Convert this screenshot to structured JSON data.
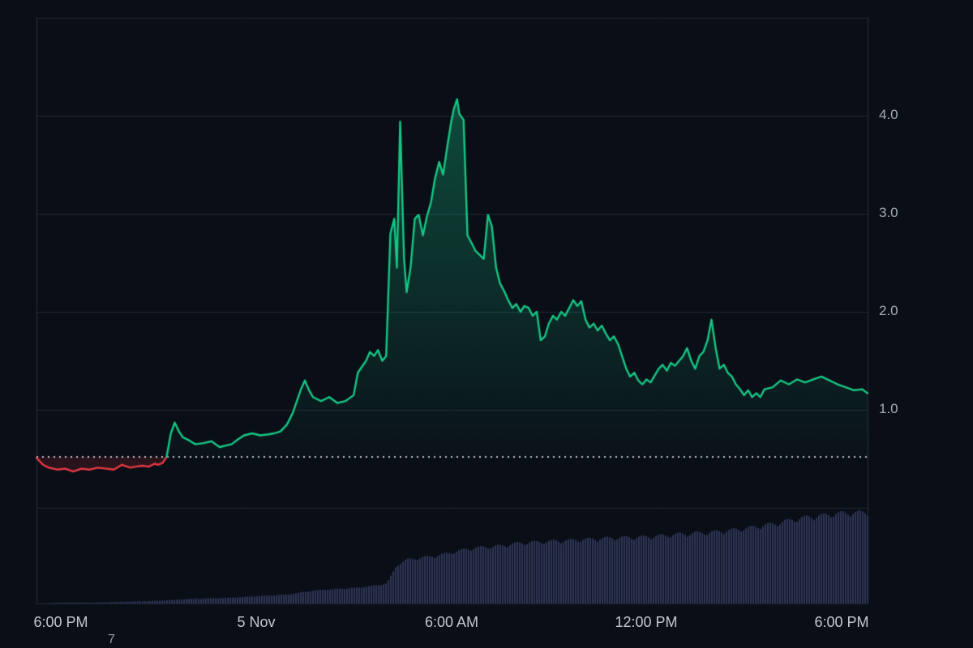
{
  "chart_data": {
    "type": "line",
    "title": "",
    "legend": "none",
    "grid": "horizontal",
    "time_range_hours": [
      17.25,
      42.8
    ],
    "ylim": [
      0,
      5
    ],
    "open_price": 0.52,
    "baseline": {
      "value": 0.52,
      "style": "dotted"
    },
    "x_axis": {
      "ticks": [
        {
          "t": 18,
          "label": "6:00 PM"
        },
        {
          "t": 24,
          "label": "5 Nov"
        },
        {
          "t": 30,
          "label": "6:00 AM"
        },
        {
          "t": 36,
          "label": "12:00 PM"
        },
        {
          "t": 42,
          "label": "6:00 PM"
        }
      ]
    },
    "y_axis": {
      "ticks": [
        {
          "v": 4,
          "label": "4.0"
        },
        {
          "v": 3,
          "label": "3.0"
        },
        {
          "v": 2,
          "label": "2.0"
        },
        {
          "v": 1,
          "label": "1.0"
        }
      ],
      "grid_values": [
        0,
        1,
        2,
        3,
        4,
        5
      ]
    },
    "series": [
      {
        "name": "price",
        "color_up": "#16c784",
        "color_down": "#ea3943",
        "points": [
          [
            17.25,
            0.51
          ],
          [
            17.45,
            0.44
          ],
          [
            17.63,
            0.41
          ],
          [
            17.9,
            0.39
          ],
          [
            18.13,
            0.4
          ],
          [
            18.38,
            0.37
          ],
          [
            18.63,
            0.4
          ],
          [
            18.88,
            0.39
          ],
          [
            19.13,
            0.41
          ],
          [
            19.4,
            0.4
          ],
          [
            19.63,
            0.39
          ],
          [
            19.88,
            0.44
          ],
          [
            20.13,
            0.41
          ],
          [
            20.3,
            0.42
          ],
          [
            20.5,
            0.43
          ],
          [
            20.7,
            0.42
          ],
          [
            20.88,
            0.45
          ],
          [
            21.0,
            0.44
          ],
          [
            21.13,
            0.46
          ],
          [
            21.25,
            0.52
          ],
          [
            21.38,
            0.76
          ],
          [
            21.5,
            0.87
          ],
          [
            21.63,
            0.78
          ],
          [
            21.75,
            0.72
          ],
          [
            21.88,
            0.7
          ],
          [
            22.13,
            0.65
          ],
          [
            22.38,
            0.66
          ],
          [
            22.63,
            0.68
          ],
          [
            22.88,
            0.62
          ],
          [
            23.0,
            0.63
          ],
          [
            23.25,
            0.65
          ],
          [
            23.45,
            0.7
          ],
          [
            23.63,
            0.74
          ],
          [
            23.88,
            0.76
          ],
          [
            24.13,
            0.74
          ],
          [
            24.38,
            0.75
          ],
          [
            24.55,
            0.76
          ],
          [
            24.75,
            0.78
          ],
          [
            24.95,
            0.85
          ],
          [
            25.13,
            0.97
          ],
          [
            25.38,
            1.21
          ],
          [
            25.5,
            1.3
          ],
          [
            25.63,
            1.2
          ],
          [
            25.75,
            1.13
          ],
          [
            26.0,
            1.09
          ],
          [
            26.25,
            1.13
          ],
          [
            26.5,
            1.07
          ],
          [
            26.75,
            1.09
          ],
          [
            27.0,
            1.15
          ],
          [
            27.13,
            1.38
          ],
          [
            27.38,
            1.5
          ],
          [
            27.5,
            1.59
          ],
          [
            27.63,
            1.55
          ],
          [
            27.75,
            1.61
          ],
          [
            27.88,
            1.5
          ],
          [
            28.0,
            1.55
          ],
          [
            28.13,
            2.8
          ],
          [
            28.25,
            2.95
          ],
          [
            28.33,
            2.45
          ],
          [
            28.43,
            3.94
          ],
          [
            28.55,
            2.54
          ],
          [
            28.63,
            2.2
          ],
          [
            28.75,
            2.45
          ],
          [
            28.88,
            2.95
          ],
          [
            29.0,
            2.99
          ],
          [
            29.13,
            2.78
          ],
          [
            29.25,
            2.97
          ],
          [
            29.38,
            3.12
          ],
          [
            29.5,
            3.36
          ],
          [
            29.63,
            3.53
          ],
          [
            29.75,
            3.4
          ],
          [
            29.88,
            3.69
          ],
          [
            30.0,
            3.94
          ],
          [
            30.08,
            4.07
          ],
          [
            30.18,
            4.17
          ],
          [
            30.25,
            4.02
          ],
          [
            30.38,
            3.96
          ],
          [
            30.5,
            2.78
          ],
          [
            30.63,
            2.7
          ],
          [
            30.75,
            2.62
          ],
          [
            30.88,
            2.58
          ],
          [
            31.0,
            2.54
          ],
          [
            31.13,
            2.99
          ],
          [
            31.25,
            2.87
          ],
          [
            31.38,
            2.45
          ],
          [
            31.5,
            2.29
          ],
          [
            31.63,
            2.21
          ],
          [
            31.75,
            2.12
          ],
          [
            31.88,
            2.04
          ],
          [
            32.0,
            2.08
          ],
          [
            32.13,
            2.0
          ],
          [
            32.25,
            2.06
          ],
          [
            32.38,
            2.04
          ],
          [
            32.5,
            1.96
          ],
          [
            32.63,
            2.0
          ],
          [
            32.75,
            1.71
          ],
          [
            32.88,
            1.75
          ],
          [
            33.0,
            1.88
          ],
          [
            33.13,
            1.96
          ],
          [
            33.25,
            1.92
          ],
          [
            33.38,
            2.0
          ],
          [
            33.5,
            1.96
          ],
          [
            33.63,
            2.04
          ],
          [
            33.75,
            2.12
          ],
          [
            33.88,
            2.06
          ],
          [
            34.0,
            2.11
          ],
          [
            34.13,
            1.92
          ],
          [
            34.25,
            1.84
          ],
          [
            34.38,
            1.88
          ],
          [
            34.5,
            1.81
          ],
          [
            34.63,
            1.86
          ],
          [
            34.75,
            1.78
          ],
          [
            34.88,
            1.71
          ],
          [
            35.0,
            1.75
          ],
          [
            35.13,
            1.67
          ],
          [
            35.25,
            1.55
          ],
          [
            35.38,
            1.42
          ],
          [
            35.5,
            1.34
          ],
          [
            35.63,
            1.38
          ],
          [
            35.75,
            1.3
          ],
          [
            35.88,
            1.26
          ],
          [
            36.0,
            1.31
          ],
          [
            36.13,
            1.28
          ],
          [
            36.38,
            1.42
          ],
          [
            36.5,
            1.46
          ],
          [
            36.63,
            1.4
          ],
          [
            36.75,
            1.48
          ],
          [
            36.88,
            1.45
          ],
          [
            37.13,
            1.55
          ],
          [
            37.25,
            1.63
          ],
          [
            37.38,
            1.5
          ],
          [
            37.5,
            1.42
          ],
          [
            37.63,
            1.55
          ],
          [
            37.75,
            1.59
          ],
          [
            37.88,
            1.71
          ],
          [
            38.0,
            1.92
          ],
          [
            38.13,
            1.63
          ],
          [
            38.25,
            1.42
          ],
          [
            38.38,
            1.46
          ],
          [
            38.5,
            1.38
          ],
          [
            38.63,
            1.34
          ],
          [
            38.75,
            1.26
          ],
          [
            38.88,
            1.21
          ],
          [
            39.0,
            1.15
          ],
          [
            39.13,
            1.2
          ],
          [
            39.25,
            1.13
          ],
          [
            39.38,
            1.17
          ],
          [
            39.5,
            1.13
          ],
          [
            39.63,
            1.21
          ],
          [
            39.88,
            1.23
          ],
          [
            40.13,
            1.3
          ],
          [
            40.38,
            1.26
          ],
          [
            40.63,
            1.31
          ],
          [
            40.88,
            1.28
          ],
          [
            41.13,
            1.31
          ],
          [
            41.38,
            1.34
          ],
          [
            41.63,
            1.3
          ],
          [
            41.88,
            1.26
          ],
          [
            42.13,
            1.23
          ],
          [
            42.38,
            1.2
          ],
          [
            42.63,
            1.21
          ],
          [
            42.8,
            1.17
          ]
        ]
      }
    ],
    "volume": {
      "name": "volume",
      "normalized": true,
      "control_points": [
        [
          17.25,
          0.0
        ],
        [
          18.0,
          0.01
        ],
        [
          19.0,
          0.01
        ],
        [
          20.0,
          0.02
        ],
        [
          21.0,
          0.03
        ],
        [
          22.0,
          0.05
        ],
        [
          23.0,
          0.06
        ],
        [
          24.0,
          0.08
        ],
        [
          25.0,
          0.1
        ],
        [
          25.5,
          0.13
        ],
        [
          26.0,
          0.15
        ],
        [
          27.0,
          0.17
        ],
        [
          27.5,
          0.19
        ],
        [
          28.0,
          0.22
        ],
        [
          28.3,
          0.42
        ],
        [
          28.6,
          0.48
        ],
        [
          29.0,
          0.5
        ],
        [
          29.5,
          0.52
        ],
        [
          30.0,
          0.56
        ],
        [
          30.5,
          0.6
        ],
        [
          31.0,
          0.62
        ],
        [
          31.5,
          0.63
        ],
        [
          32.0,
          0.66
        ],
        [
          33.0,
          0.68
        ],
        [
          34.0,
          0.7
        ],
        [
          35.0,
          0.72
        ],
        [
          36.0,
          0.73
        ],
        [
          37.0,
          0.76
        ],
        [
          38.0,
          0.78
        ],
        [
          38.5,
          0.8
        ],
        [
          39.0,
          0.82
        ],
        [
          39.5,
          0.85
        ],
        [
          40.0,
          0.88
        ],
        [
          40.5,
          0.92
        ],
        [
          41.0,
          0.95
        ],
        [
          41.5,
          0.97
        ],
        [
          42.0,
          0.99
        ],
        [
          42.8,
          1.0
        ]
      ]
    }
  },
  "colors": {
    "background": "#0a0e17",
    "grid": "#212734",
    "border": "#262d3c",
    "up": "#16c784",
    "down": "#ea3943",
    "baseline_dotted": "#e2e6ea",
    "volume_bar": "#2e3757",
    "x_axis_text": "#c3c8d0",
    "y_axis_text": "#a5acb6"
  },
  "stray": {
    "char": "7"
  }
}
